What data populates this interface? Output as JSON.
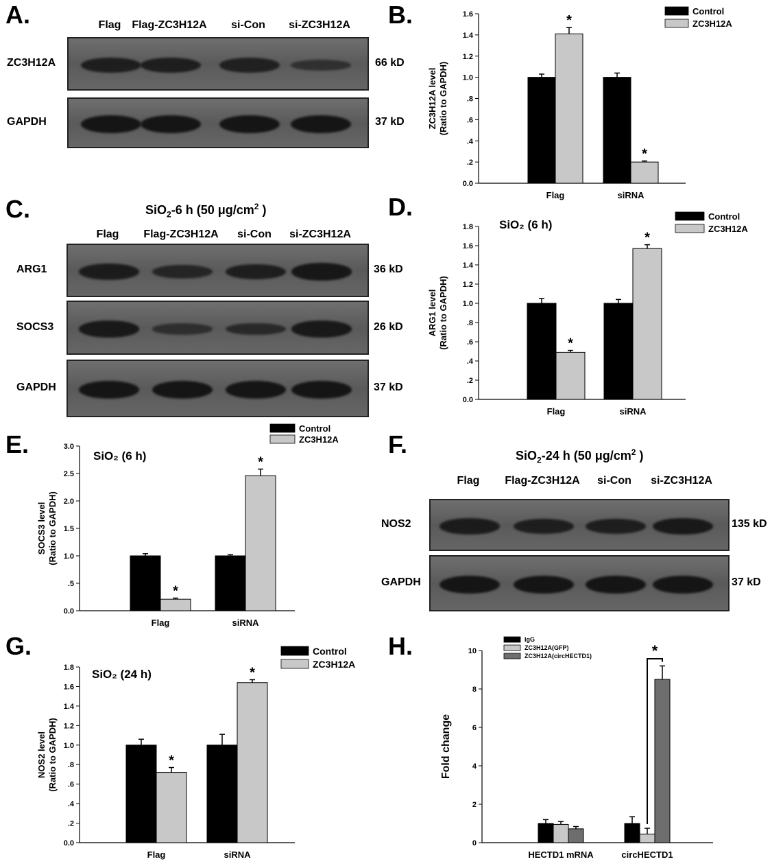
{
  "panels": {
    "A": {
      "label": "A.",
      "lanes": [
        "Flag",
        "Flag-ZC3H12A",
        "si-Con",
        "si-ZC3H12A"
      ],
      "rows": [
        {
          "name": "ZC3H12A",
          "kd": "66 kD",
          "intensity": [
            0.8,
            0.8,
            0.75,
            0.4
          ]
        },
        {
          "name": "GAPDH",
          "kd": "37 kD",
          "intensity": [
            1,
            1,
            1,
            1
          ]
        }
      ]
    },
    "B": {
      "label": "B."
    },
    "C": {
      "label": "C.",
      "title_main": "SiO",
      "title_sub": "2",
      "title_mid": "-6 h (50 μg/cm",
      "title_sup": "2",
      "title_end": " )",
      "lanes": [
        "Flag",
        "Flag-ZC3H12A",
        "si-Con",
        "si-ZC3H12A"
      ],
      "rows": [
        {
          "name": "ARG1",
          "kd": "36 kD",
          "intensity": [
            0.85,
            0.65,
            0.8,
            0.95
          ]
        },
        {
          "name": "SOCS3",
          "kd": "26 kD",
          "intensity": [
            0.9,
            0.45,
            0.55,
            0.9
          ]
        },
        {
          "name": "GAPDH",
          "kd": "37 kD",
          "intensity": [
            1,
            1,
            1,
            1
          ]
        }
      ]
    },
    "D": {
      "label": "D."
    },
    "E": {
      "label": "E."
    },
    "F": {
      "label": "F.",
      "title_main": "SiO",
      "title_sub": "2",
      "title_mid": "-24 h (50 μg/cm",
      "title_sup": "2",
      "title_end": " )",
      "lanes": [
        "Flag",
        "Flag-ZC3H12A",
        "si-Con",
        "si-ZC3H12A"
      ],
      "rows": [
        {
          "name": "NOS2",
          "kd": "135 kD",
          "intensity": [
            0.85,
            0.8,
            0.8,
            0.9
          ]
        },
        {
          "name": "GAPDH",
          "kd": "37 kD",
          "intensity": [
            1,
            1,
            1,
            1
          ]
        }
      ]
    },
    "G": {
      "label": "G."
    },
    "H": {
      "label": "H."
    }
  },
  "chart_data": [
    {
      "panel": "B",
      "type": "bar",
      "categories": [
        "Flag",
        "siRNA"
      ],
      "series": [
        {
          "name": "Control",
          "color": "#000000",
          "values": [
            1.0,
            1.0
          ],
          "errors": [
            0.03,
            0.04
          ]
        },
        {
          "name": "ZC3H12A",
          "color": "#c8c8c8",
          "values": [
            1.41,
            0.2
          ],
          "errors": [
            0.06,
            0.01
          ]
        }
      ],
      "significant": [
        [
          false,
          false
        ],
        [
          true,
          true
        ]
      ],
      "ylabel_line1": "ZC3H12A level",
      "ylabel_line2": "(Ratio to GAPDH)",
      "ylim": [
        0,
        1.6
      ],
      "yticks": [
        "0.0",
        ".2",
        ".4",
        ".6",
        ".8",
        "1.0",
        "1.2",
        "1.4",
        "1.6"
      ],
      "annotation": "",
      "legend": "top-right"
    },
    {
      "panel": "D",
      "type": "bar",
      "categories": [
        "Flag",
        "siRNA"
      ],
      "series": [
        {
          "name": "Control",
          "color": "#000000",
          "values": [
            1.0,
            1.0
          ],
          "errors": [
            0.05,
            0.04
          ]
        },
        {
          "name": "ZC3H12A",
          "color": "#c8c8c8",
          "values": [
            0.49,
            1.57
          ],
          "errors": [
            0.02,
            0.04
          ]
        }
      ],
      "significant": [
        [
          false,
          false
        ],
        [
          true,
          true
        ]
      ],
      "ylabel_line1": "ARG1 level",
      "ylabel_line2": "(Ratio to GAPDH)",
      "ylim": [
        0,
        1.8
      ],
      "yticks": [
        "0.0",
        ".2",
        ".4",
        ".6",
        ".8",
        "1.0",
        "1.2",
        "1.4",
        "1.6",
        "1.8"
      ],
      "annotation": "SiO₂ (6 h)",
      "legend": "top-right"
    },
    {
      "panel": "E",
      "type": "bar",
      "categories": [
        "Flag",
        "siRNA"
      ],
      "series": [
        {
          "name": "Control",
          "color": "#000000",
          "values": [
            1.0,
            1.0
          ],
          "errors": [
            0.04,
            0.02
          ]
        },
        {
          "name": "ZC3H12A",
          "color": "#c8c8c8",
          "values": [
            0.21,
            2.46
          ],
          "errors": [
            0.02,
            0.12
          ]
        }
      ],
      "significant": [
        [
          false,
          false
        ],
        [
          true,
          true
        ]
      ],
      "ylabel_line1": "SOCS3 level",
      "ylabel_line2": "(Ratio to GAPDH)",
      "ylim": [
        0,
        3.0
      ],
      "yticks": [
        "0.0",
        ".5",
        "1.0",
        "1.5",
        "2.0",
        "2.5",
        "3.0"
      ],
      "annotation": "SiO₂ (6 h)",
      "legend": "top-right"
    },
    {
      "panel": "G",
      "type": "bar",
      "categories": [
        "Flag",
        "siRNA"
      ],
      "series": [
        {
          "name": "Control",
          "color": "#000000",
          "values": [
            1.0,
            1.0
          ],
          "errors": [
            0.06,
            0.11
          ]
        },
        {
          "name": "ZC3H12A",
          "color": "#c8c8c8",
          "values": [
            0.72,
            1.64
          ],
          "errors": [
            0.05,
            0.03
          ]
        }
      ],
      "significant": [
        [
          false,
          false
        ],
        [
          true,
          true
        ]
      ],
      "ylabel_line1": "NOS2 level",
      "ylabel_line2": "(Ratio to GAPDH)",
      "ylim": [
        0,
        1.8
      ],
      "yticks": [
        "0.0",
        ".2",
        ".4",
        ".6",
        ".8",
        "1.0",
        "1.2",
        "1.4",
        "1.6",
        "1.8"
      ],
      "annotation": "SiO₂ (24 h)",
      "legend": "top-right"
    },
    {
      "panel": "H",
      "type": "bar",
      "categories": [
        "HECTD1 mRNA",
        "circHECTD1"
      ],
      "series": [
        {
          "name": "IgG",
          "color": "#000000",
          "values": [
            1.0,
            1.0
          ],
          "errors": [
            0.2,
            0.35
          ]
        },
        {
          "name": "ZC3H12A(GFP)",
          "color": "#c8c8c8",
          "values": [
            0.95,
            0.45
          ],
          "errors": [
            0.15,
            0.3
          ]
        },
        {
          "name": "ZC3H12A(circHECTD1)",
          "color": "#6e6e6e",
          "values": [
            0.72,
            8.5
          ],
          "errors": [
            0.12,
            0.7
          ]
        }
      ],
      "ylabel_line1": "Fold change",
      "ylabel_line2": "",
      "ylim": [
        0,
        10
      ],
      "yticks": [
        "0",
        "2",
        "4",
        "6",
        "8",
        "10"
      ],
      "bracket": {
        "category": 1,
        "from_series": 1,
        "to_series": 2,
        "label": "*"
      },
      "legend": "top-left"
    }
  ]
}
